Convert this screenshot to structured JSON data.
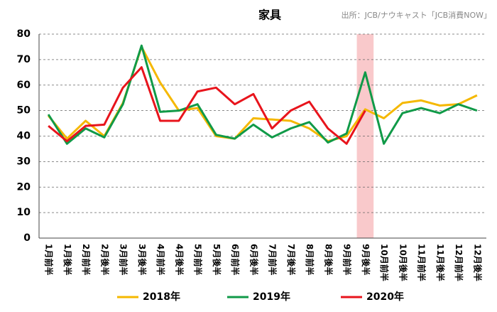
{
  "chart_data": {
    "type": "line",
    "title": "家具",
    "source": "出所：JCB/ナウキャスト「JCB消費NOW」",
    "categories": [
      "1月前半",
      "1月後半",
      "2月前半",
      "2月後半",
      "3月前半",
      "3月後半",
      "4月前半",
      "4月後半",
      "5月前半",
      "5月後半",
      "6月前半",
      "6月後半",
      "7月前半",
      "7月後半",
      "8月前半",
      "8月後半",
      "9月前半",
      "9月後半",
      "10月前半",
      "10月後半",
      "11月前半",
      "11月後半",
      "12月前半",
      "12月後半"
    ],
    "series": [
      {
        "name": "2018年",
        "color": "#f5b800",
        "values": [
          48,
          39,
          46,
          40,
          53,
          75,
          61,
          50,
          51,
          40,
          39,
          47,
          46.5,
          46,
          43,
          38,
          40,
          50.5,
          47,
          53,
          54,
          52,
          52.5,
          56
        ]
      },
      {
        "name": "2019年",
        "color": "#109a48",
        "values": [
          48.5,
          37,
          43,
          39.5,
          52.5,
          75.5,
          49.5,
          50,
          52.5,
          40.5,
          39,
          44.5,
          39.5,
          43,
          45.5,
          37.5,
          41,
          65,
          37,
          49,
          51,
          49,
          52.5,
          50
        ]
      },
      {
        "name": "2020年",
        "color": "#e8141c",
        "values": [
          44,
          38,
          44,
          44.5,
          59,
          67,
          46,
          46,
          57.5,
          59,
          52.5,
          56.5,
          43,
          50,
          53.5,
          43,
          37,
          50,
          null,
          null,
          null,
          null,
          null,
          null
        ]
      }
    ],
    "highlight": 17,
    "highlight_color": "#f9c9cb",
    "ylim": [
      0,
      80
    ],
    "yticks": [
      0,
      10,
      20,
      30,
      40,
      50,
      60,
      70,
      80
    ],
    "grid": true,
    "legend": "bottom"
  }
}
